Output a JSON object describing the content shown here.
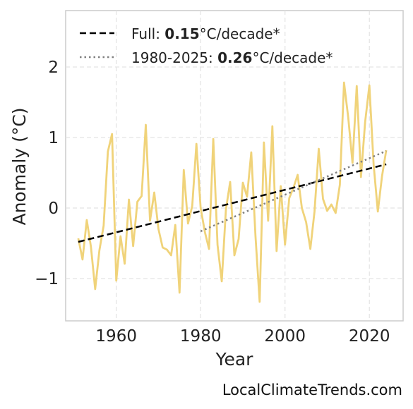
{
  "chart_data": {
    "type": "line",
    "title": "",
    "xlabel": "Year",
    "ylabel": "Anomaly (°C)",
    "xlim": [
      1948,
      2028
    ],
    "ylim": [
      -1.6,
      2.8
    ],
    "xticks": [
      1960,
      1980,
      2000,
      2020
    ],
    "yticks": [
      -1,
      0,
      1,
      2
    ],
    "ytick_labels": [
      "−1",
      "0",
      "1",
      "2"
    ],
    "grid": true,
    "legend_placement": "top-left",
    "colors": {
      "anomaly": "#f0d37a",
      "full_trend": "#000000",
      "recent_trend": "#808080"
    },
    "series": [
      {
        "key": "anomaly",
        "x": [
          1951,
          1952,
          1953,
          1954,
          1955,
          1956,
          1957,
          1958,
          1959,
          1960,
          1961,
          1962,
          1963,
          1964,
          1965,
          1966,
          1967,
          1968,
          1969,
          1970,
          1971,
          1972,
          1973,
          1974,
          1975,
          1976,
          1977,
          1978,
          1979,
          1980,
          1981,
          1982,
          1983,
          1984,
          1985,
          1986,
          1987,
          1988,
          1989,
          1990,
          1991,
          1992,
          1993,
          1994,
          1995,
          1996,
          1997,
          1998,
          1999,
          2000,
          2001,
          2002,
          2003,
          2004,
          2005,
          2006,
          2007,
          2008,
          2009,
          2010,
          2011,
          2012,
          2013,
          2014,
          2015,
          2016,
          2017,
          2018,
          2019,
          2020,
          2021,
          2022,
          2023,
          2024
        ],
        "y": [
          -0.43,
          -0.73,
          -0.17,
          -0.55,
          -1.15,
          -0.6,
          -0.25,
          0.8,
          1.05,
          -1.03,
          -0.4,
          -0.79,
          0.12,
          -0.54,
          0.09,
          0.17,
          1.18,
          -0.18,
          0.22,
          -0.3,
          -0.56,
          -0.59,
          -0.67,
          -0.24,
          -1.2,
          0.54,
          -0.22,
          0.03,
          0.91,
          0.0,
          -0.34,
          -0.58,
          0.98,
          -0.52,
          -1.04,
          -0.02,
          0.37,
          -0.67,
          -0.44,
          0.36,
          0.16,
          0.79,
          -0.4,
          -1.33,
          0.93,
          -0.18,
          1.16,
          -0.61,
          0.31,
          -0.52,
          0.14,
          0.29,
          0.47,
          0.0,
          -0.2,
          -0.58,
          -0.05,
          0.84,
          0.13,
          -0.04,
          0.05,
          -0.07,
          0.33,
          1.78,
          1.28,
          0.64,
          1.73,
          0.44,
          1.22,
          1.74,
          0.62,
          -0.05,
          0.45,
          0.82
        ]
      },
      {
        "key": "full_trend",
        "name": "Full",
        "rate": "0.15",
        "unit": "°C/decade*",
        "style": "dashed",
        "x": [
          1951,
          2024
        ],
        "y": [
          -0.48,
          0.62
        ]
      },
      {
        "key": "recent_trend",
        "name": "1980-2025",
        "rate": "0.26",
        "unit": "°C/decade*",
        "style": "dotted",
        "x": [
          1980,
          2024
        ],
        "y": [
          -0.33,
          0.81
        ]
      }
    ]
  },
  "legend": {
    "entries": [
      {
        "prefix": "Full: ",
        "value": "0.15",
        "suffix": "°C/decade*"
      },
      {
        "prefix": "1980-2025: ",
        "value": "0.26",
        "suffix": "°C/decade*"
      }
    ]
  },
  "credit": "LocalClimateTrends.com"
}
